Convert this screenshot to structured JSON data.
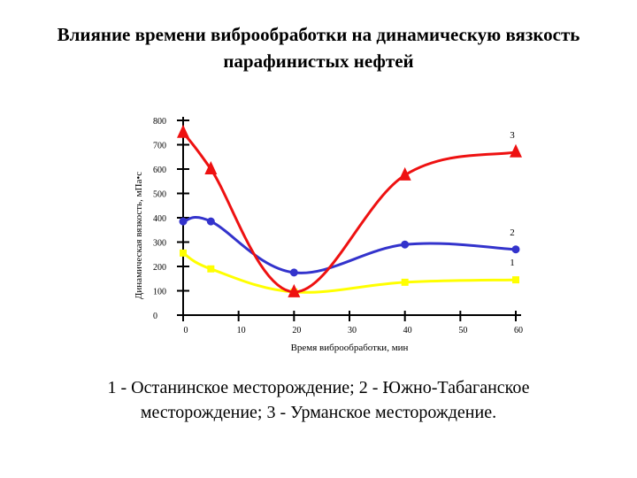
{
  "title": {
    "line1": "Влияние времени виброобработки на динамическую вязкость",
    "line2": "парафинистых нефтей"
  },
  "caption": {
    "line1": "1 - Останинское месторождение; 2 - Южно-Табаганское",
    "line2": "месторождение; 3 - Урманское месторождение."
  },
  "chart_data": {
    "type": "line",
    "title": "Влияние времени виброобработки на динамическую вязкость парафинистых нефтей",
    "xlabel": "Время виброобработки, мин",
    "ylabel": "Динамическая вязкость, мПа•с",
    "xlim": [
      0,
      60
    ],
    "ylim": [
      0,
      800
    ],
    "x_ticks": [
      0,
      10,
      20,
      30,
      40,
      50,
      60
    ],
    "y_ticks": [
      0,
      100,
      200,
      300,
      400,
      500,
      600,
      700,
      800
    ],
    "grid": false,
    "series": [
      {
        "name": "1",
        "color": "#ffff00",
        "marker": "square",
        "x": [
          0,
          5,
          20,
          40,
          60
        ],
        "y": [
          255,
          190,
          95,
          135,
          145
        ]
      },
      {
        "name": "2",
        "color": "#3333cc",
        "marker": "circle",
        "x": [
          0,
          5,
          20,
          40,
          60
        ],
        "y": [
          385,
          385,
          175,
          290,
          270
        ]
      },
      {
        "name": "3",
        "color": "#ee1111",
        "marker": "triangle",
        "x": [
          0,
          5,
          20,
          40,
          60
        ],
        "y": [
          750,
          600,
          95,
          575,
          670
        ]
      }
    ]
  }
}
